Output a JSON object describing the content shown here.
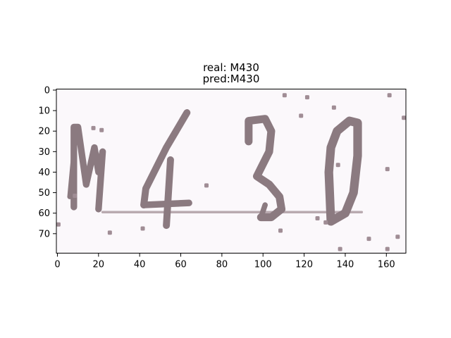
{
  "chart_data": {
    "type": "image",
    "title_lines": [
      "real: M430",
      "pred:M430"
    ],
    "captcha_text": "M430",
    "xlabel": "",
    "ylabel": "",
    "xlim": [
      -0.5,
      169.5
    ],
    "ylim": [
      79.5,
      -0.5
    ],
    "x_ticks": [
      0,
      20,
      40,
      60,
      80,
      100,
      120,
      140,
      160
    ],
    "y_ticks": [
      0,
      10,
      20,
      30,
      40,
      50,
      60,
      70
    ],
    "grid": false,
    "colors": {
      "background": "#fbf8fb",
      "glyph": "#8b7a80",
      "noise": "#a08d95",
      "line": "#b9aab0"
    }
  }
}
